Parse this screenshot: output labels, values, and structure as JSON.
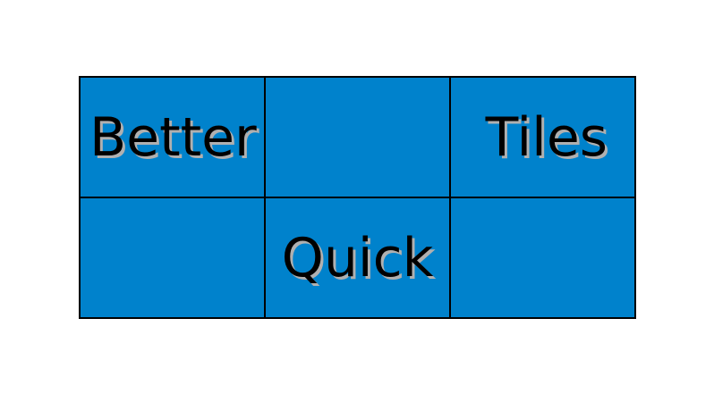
{
  "tiles": {
    "r0c0": "Better",
    "r0c1": "",
    "r0c2": "Tiles",
    "r1c0": "",
    "r1c1": "Quick",
    "r1c2": ""
  },
  "colors": {
    "tile_fill": "#0082cc",
    "border": "#000000",
    "text": "#000000",
    "text_shadow": "#b0b0b0",
    "background": "#ffffff"
  }
}
